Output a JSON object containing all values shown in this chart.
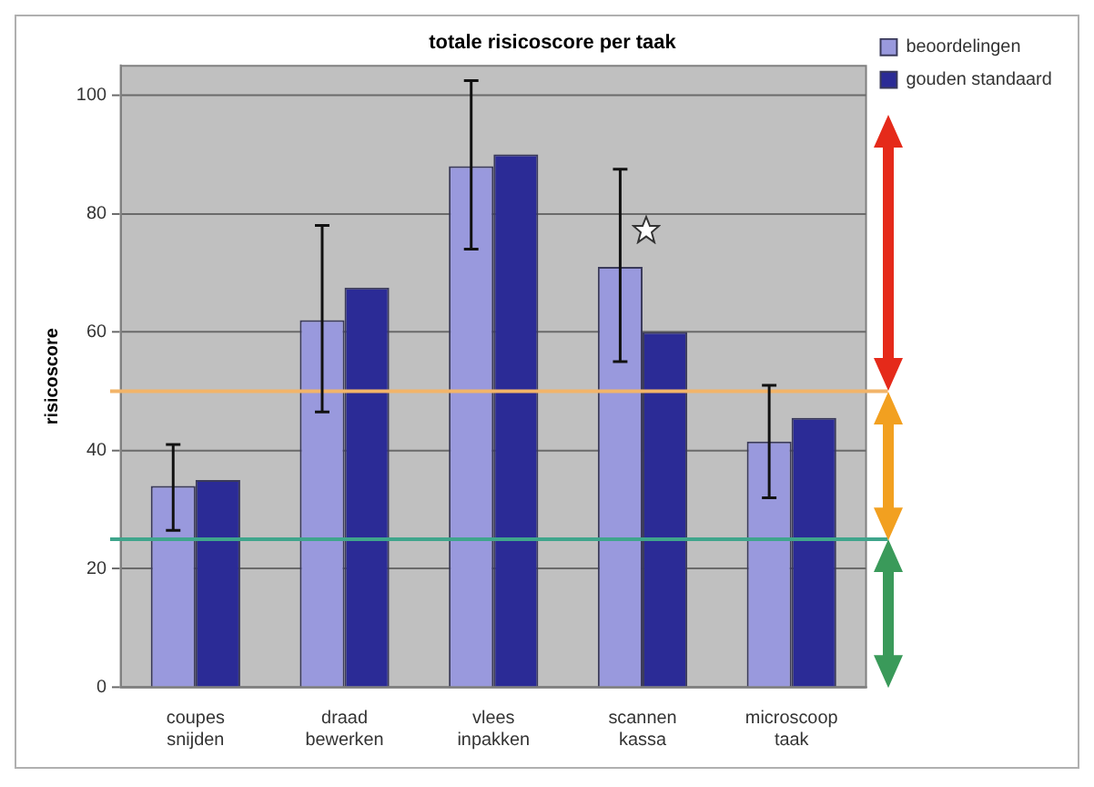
{
  "chart_data": {
    "type": "bar",
    "title": "totale risicoscore per taak",
    "ylabel": "risicoscore",
    "categories": [
      "coupes snijden",
      "draad bewerken",
      "vlees inpakken",
      "scannen kassa",
      "microscoop taak"
    ],
    "series": [
      {
        "name": "beoordelingen",
        "color": "#9999dd",
        "values": [
          34,
          62,
          88,
          71,
          41.5
        ],
        "errors": [
          [
            26.5,
            41
          ],
          [
            46.5,
            78
          ],
          [
            74,
            102.5
          ],
          [
            55,
            87.5
          ],
          [
            32,
            51
          ]
        ]
      },
      {
        "name": "gouden standaard",
        "color": "#2b2b96",
        "values": [
          35,
          67.5,
          90,
          60,
          45.5
        ]
      }
    ],
    "ylim": [
      0,
      105
    ],
    "yticks": [
      0,
      20,
      40,
      60,
      80,
      100
    ],
    "grid": "y",
    "legend": "top right",
    "ref_lines": [
      {
        "axis": "y",
        "value": 50,
        "color": "#f2b469"
      },
      {
        "axis": "y",
        "value": 25,
        "color": "#3fa58c"
      }
    ]
  }
}
